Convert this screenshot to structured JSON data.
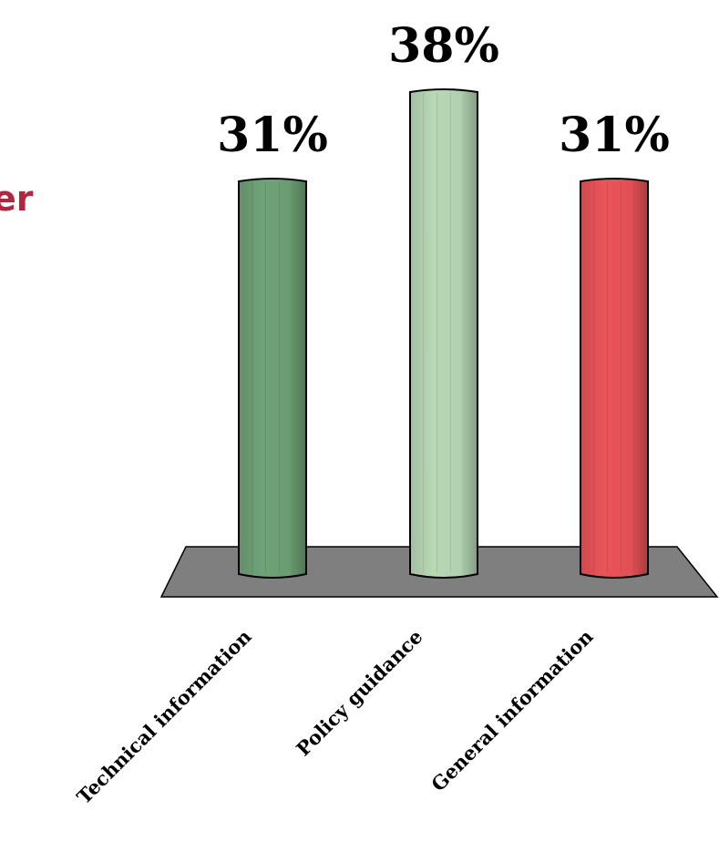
{
  "page": {
    "clipped_text": "er",
    "clipped_text_color": "#b0283f"
  },
  "chart_data": {
    "type": "bar",
    "categories": [
      "Technical information",
      "Policy guidance",
      "General information"
    ],
    "values": [
      31,
      38,
      31
    ],
    "value_labels": [
      "31%",
      "38%",
      "31%"
    ],
    "bar_colors": [
      "#6b9b72",
      "#b0cfae",
      "#e05055"
    ],
    "floor_color": "#7f7f7f",
    "title": "",
    "xlabel": "",
    "ylabel": "",
    "ylim": [
      0,
      38
    ],
    "grid": false,
    "legend": "none"
  }
}
